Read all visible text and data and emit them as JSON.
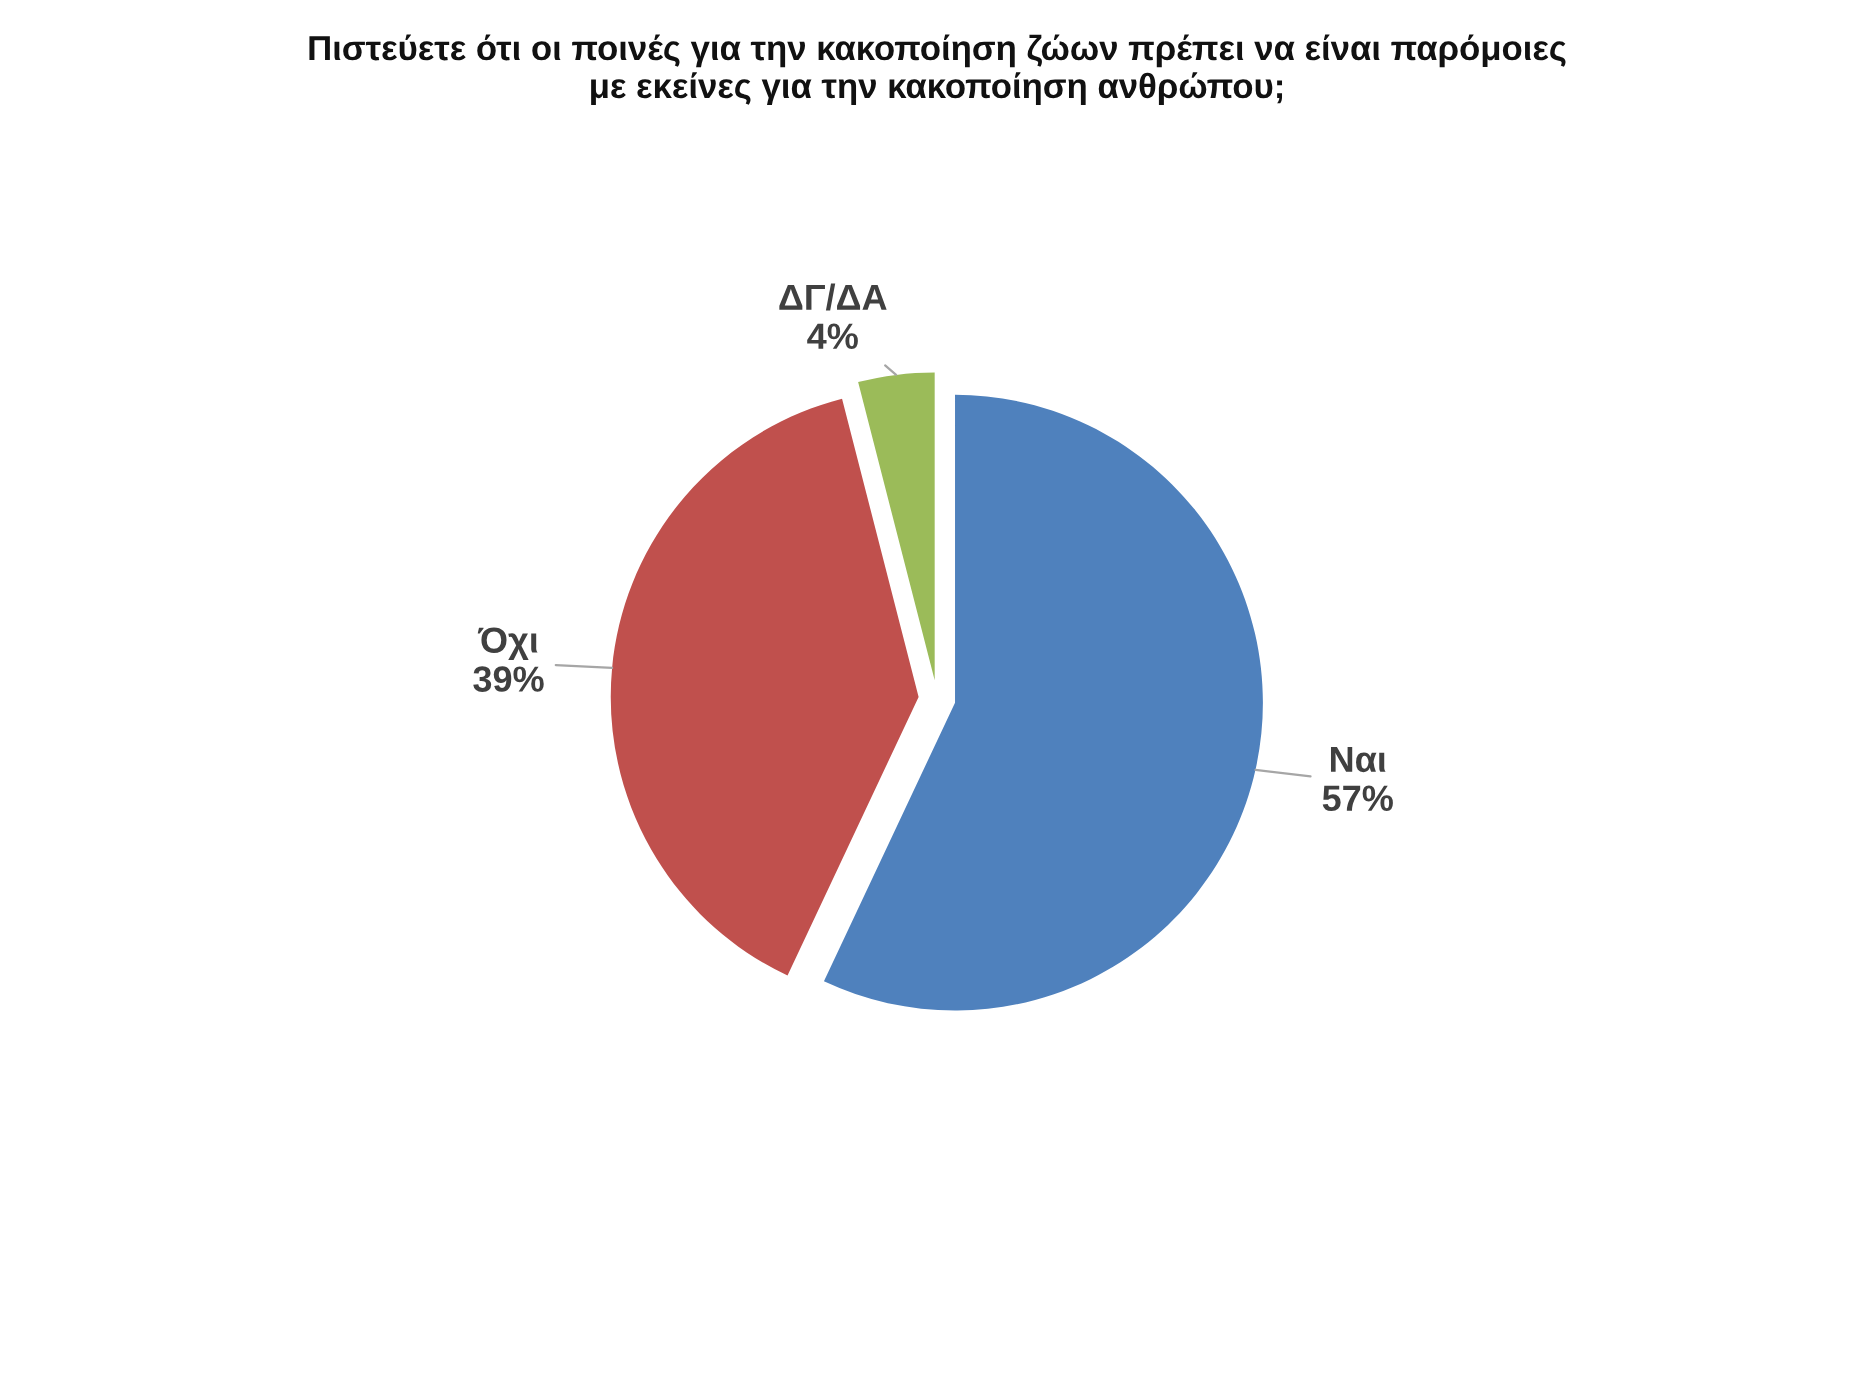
{
  "chart_data": {
    "type": "pie",
    "title": "Πιστεύετε ότι οι ποινές για την κακοποίηση ζώων πρέπει να είναι παρόμοιες\nμε εκείνες για την κακοποίηση ανθρώπου;",
    "categories": [
      "Ναι",
      "Όχι",
      "ΔΓ/ΔΑ"
    ],
    "values": [
      57,
      39,
      4
    ],
    "value_labels": [
      "57%",
      "39%",
      "4%"
    ],
    "colors": [
      "#4f81bd",
      "#c0504d",
      "#9bbb59"
    ],
    "legend": false
  }
}
